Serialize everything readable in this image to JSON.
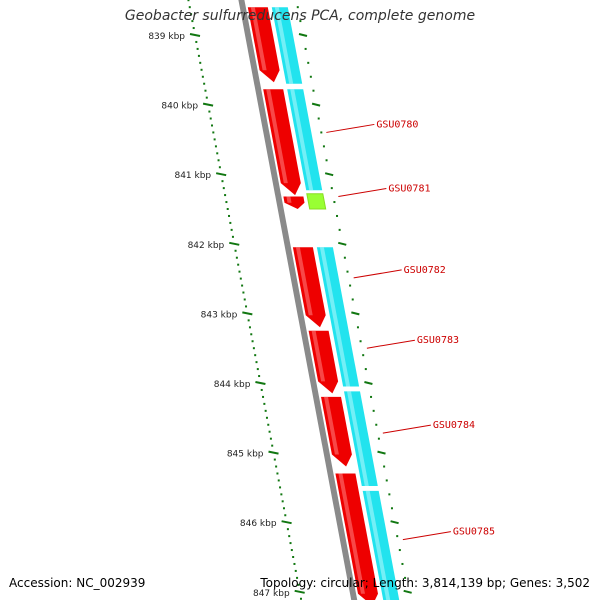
{
  "title": "Geobacter sulfurreducens PCA, complete genome",
  "footer": {
    "accession": "Accession: NC_002939",
    "summary": "Topology: circular; Length: 3,814,139 bp; Genes: 3,502"
  },
  "colors": {
    "backbone": "#8a8a8a",
    "cds_reverse": "#ee0000",
    "cds_forward": "#22e3ee",
    "other_feature": "#99ff33",
    "tick": "#117711",
    "gene_label": "#cc0000",
    "axis_label": "#222222"
  },
  "axis": {
    "unit_suffix": "kbp",
    "labels": [
      {
        "kbp": 839,
        "text": "839 kbp"
      },
      {
        "kbp": 840,
        "text": "840 kbp"
      },
      {
        "kbp": 841,
        "text": "841 kbp"
      },
      {
        "kbp": 842,
        "text": "842 kbp"
      },
      {
        "kbp": 843,
        "text": "843 kbp"
      },
      {
        "kbp": 844,
        "text": "844 kbp"
      },
      {
        "kbp": 845,
        "text": "845 kbp"
      },
      {
        "kbp": 846,
        "text": "846 kbp"
      },
      {
        "kbp": 847,
        "text": "847 kbp"
      }
    ]
  },
  "features": [
    {
      "type": "CDS",
      "strand": "reverse",
      "start": 838.6,
      "end": 839.68
    },
    {
      "type": "CDS",
      "strand": "forward",
      "start": 838.6,
      "end": 839.7
    },
    {
      "type": "CDS",
      "strand": "reverse",
      "start": 839.78,
      "end": 841.3
    },
    {
      "type": "CDS",
      "strand": "forward",
      "start": 839.78,
      "end": 841.23
    },
    {
      "type": "CDS",
      "strand": "reverse",
      "start": 841.32,
      "end": 841.5
    },
    {
      "type": "other",
      "strand": "forward",
      "start": 841.28,
      "end": 841.5
    },
    {
      "type": "CDS",
      "strand": "reverse",
      "start": 842.05,
      "end": 843.2
    },
    {
      "type": "CDS",
      "strand": "forward",
      "start": 842.05,
      "end": 844.05
    },
    {
      "type": "CDS",
      "strand": "reverse",
      "start": 843.25,
      "end": 844.15
    },
    {
      "type": "CDS",
      "strand": "reverse",
      "start": 844.2,
      "end": 845.2
    },
    {
      "type": "CDS",
      "strand": "forward",
      "start": 844.12,
      "end": 845.48
    },
    {
      "type": "CDS",
      "strand": "reverse",
      "start": 845.3,
      "end": 847.2
    },
    {
      "type": "CDS",
      "strand": "forward",
      "start": 845.55,
      "end": 847.2
    }
  ],
  "gene_labels": [
    {
      "name": "GSU0780",
      "at": 840.4
    },
    {
      "name": "GSU0781",
      "at": 841.32
    },
    {
      "name": "GSU0782",
      "at": 842.49
    },
    {
      "name": "GSU0783",
      "at": 843.5
    },
    {
      "name": "GSU0784",
      "at": 844.72
    },
    {
      "name": "GSU0785",
      "at": 846.25
    }
  ]
}
